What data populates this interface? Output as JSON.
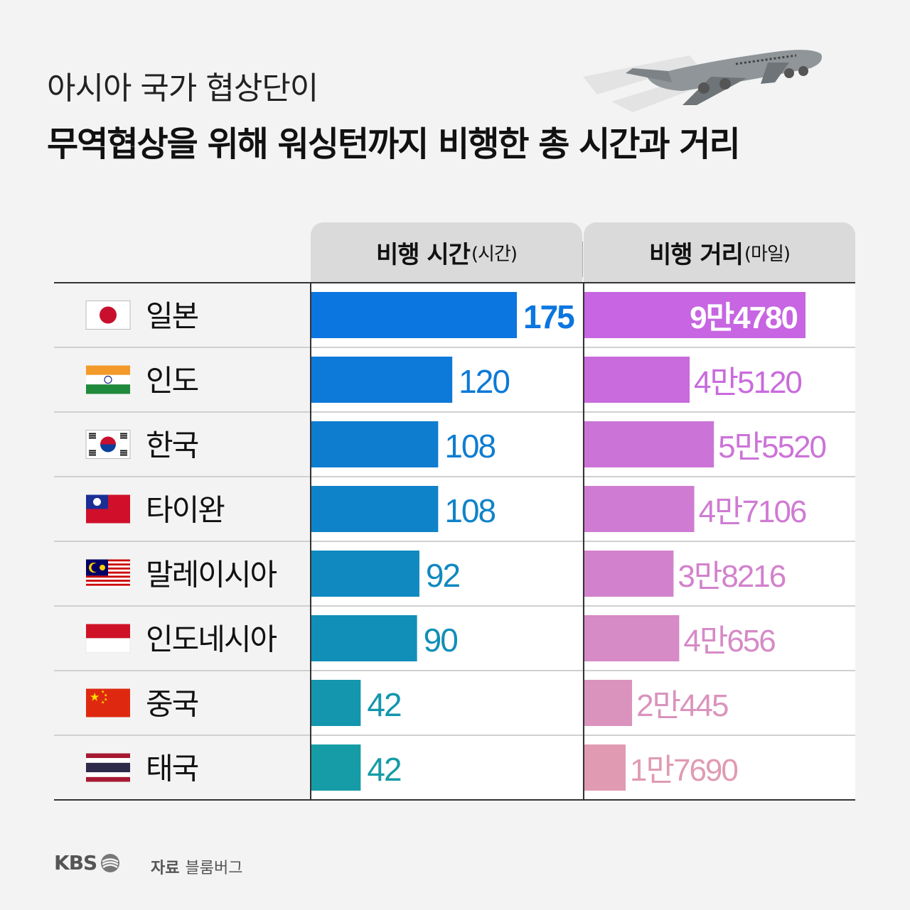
{
  "title_line1": "아시아 국가 협상단이",
  "title_line2": "무역협상을 위해 워싱턴까지 비행한 총 시간과 거리",
  "footer": {
    "logo": "KBS",
    "source_label": "자료",
    "source": "블룸버그"
  },
  "chart_data": [
    {
      "type": "bar",
      "title": "비행 시간",
      "unit": "(시간)",
      "categories": [
        "일본",
        "인도",
        "한국",
        "타이완",
        "말레이시아",
        "인도네시아",
        "중국",
        "태국"
      ],
      "values": [
        175,
        120,
        108,
        108,
        92,
        90,
        42,
        42
      ],
      "labels": [
        "175",
        "120",
        "108",
        "108",
        "92",
        "90",
        "42",
        "42"
      ],
      "colors": [
        "#0b76df",
        "#0d79d8",
        "#0e7dd0",
        "#0f83c9",
        "#1089c0",
        "#118fb8",
        "#1396ae",
        "#159ca6"
      ]
    },
    {
      "type": "bar",
      "title": "비행 거리",
      "unit": "(마일)",
      "categories": [
        "일본",
        "인도",
        "한국",
        "타이완",
        "말레이시아",
        "인도네시아",
        "중국",
        "태국"
      ],
      "values": [
        94780,
        45120,
        55520,
        47106,
        38216,
        40656,
        20445,
        17690
      ],
      "labels": [
        "9만4780",
        "4만5120",
        "5만5520",
        "4만7106",
        "3만8216",
        "4만656",
        "2만445",
        "1만7690"
      ],
      "colors": [
        "#c765e2",
        "#c96bdd",
        "#cc73d8",
        "#cf7bd3",
        "#d282cc",
        "#d68ac6",
        "#da93bd",
        "#e09bb3"
      ]
    }
  ],
  "flags": [
    "japan",
    "india",
    "south-korea",
    "taiwan",
    "malaysia",
    "indonesia",
    "china",
    "thailand"
  ]
}
